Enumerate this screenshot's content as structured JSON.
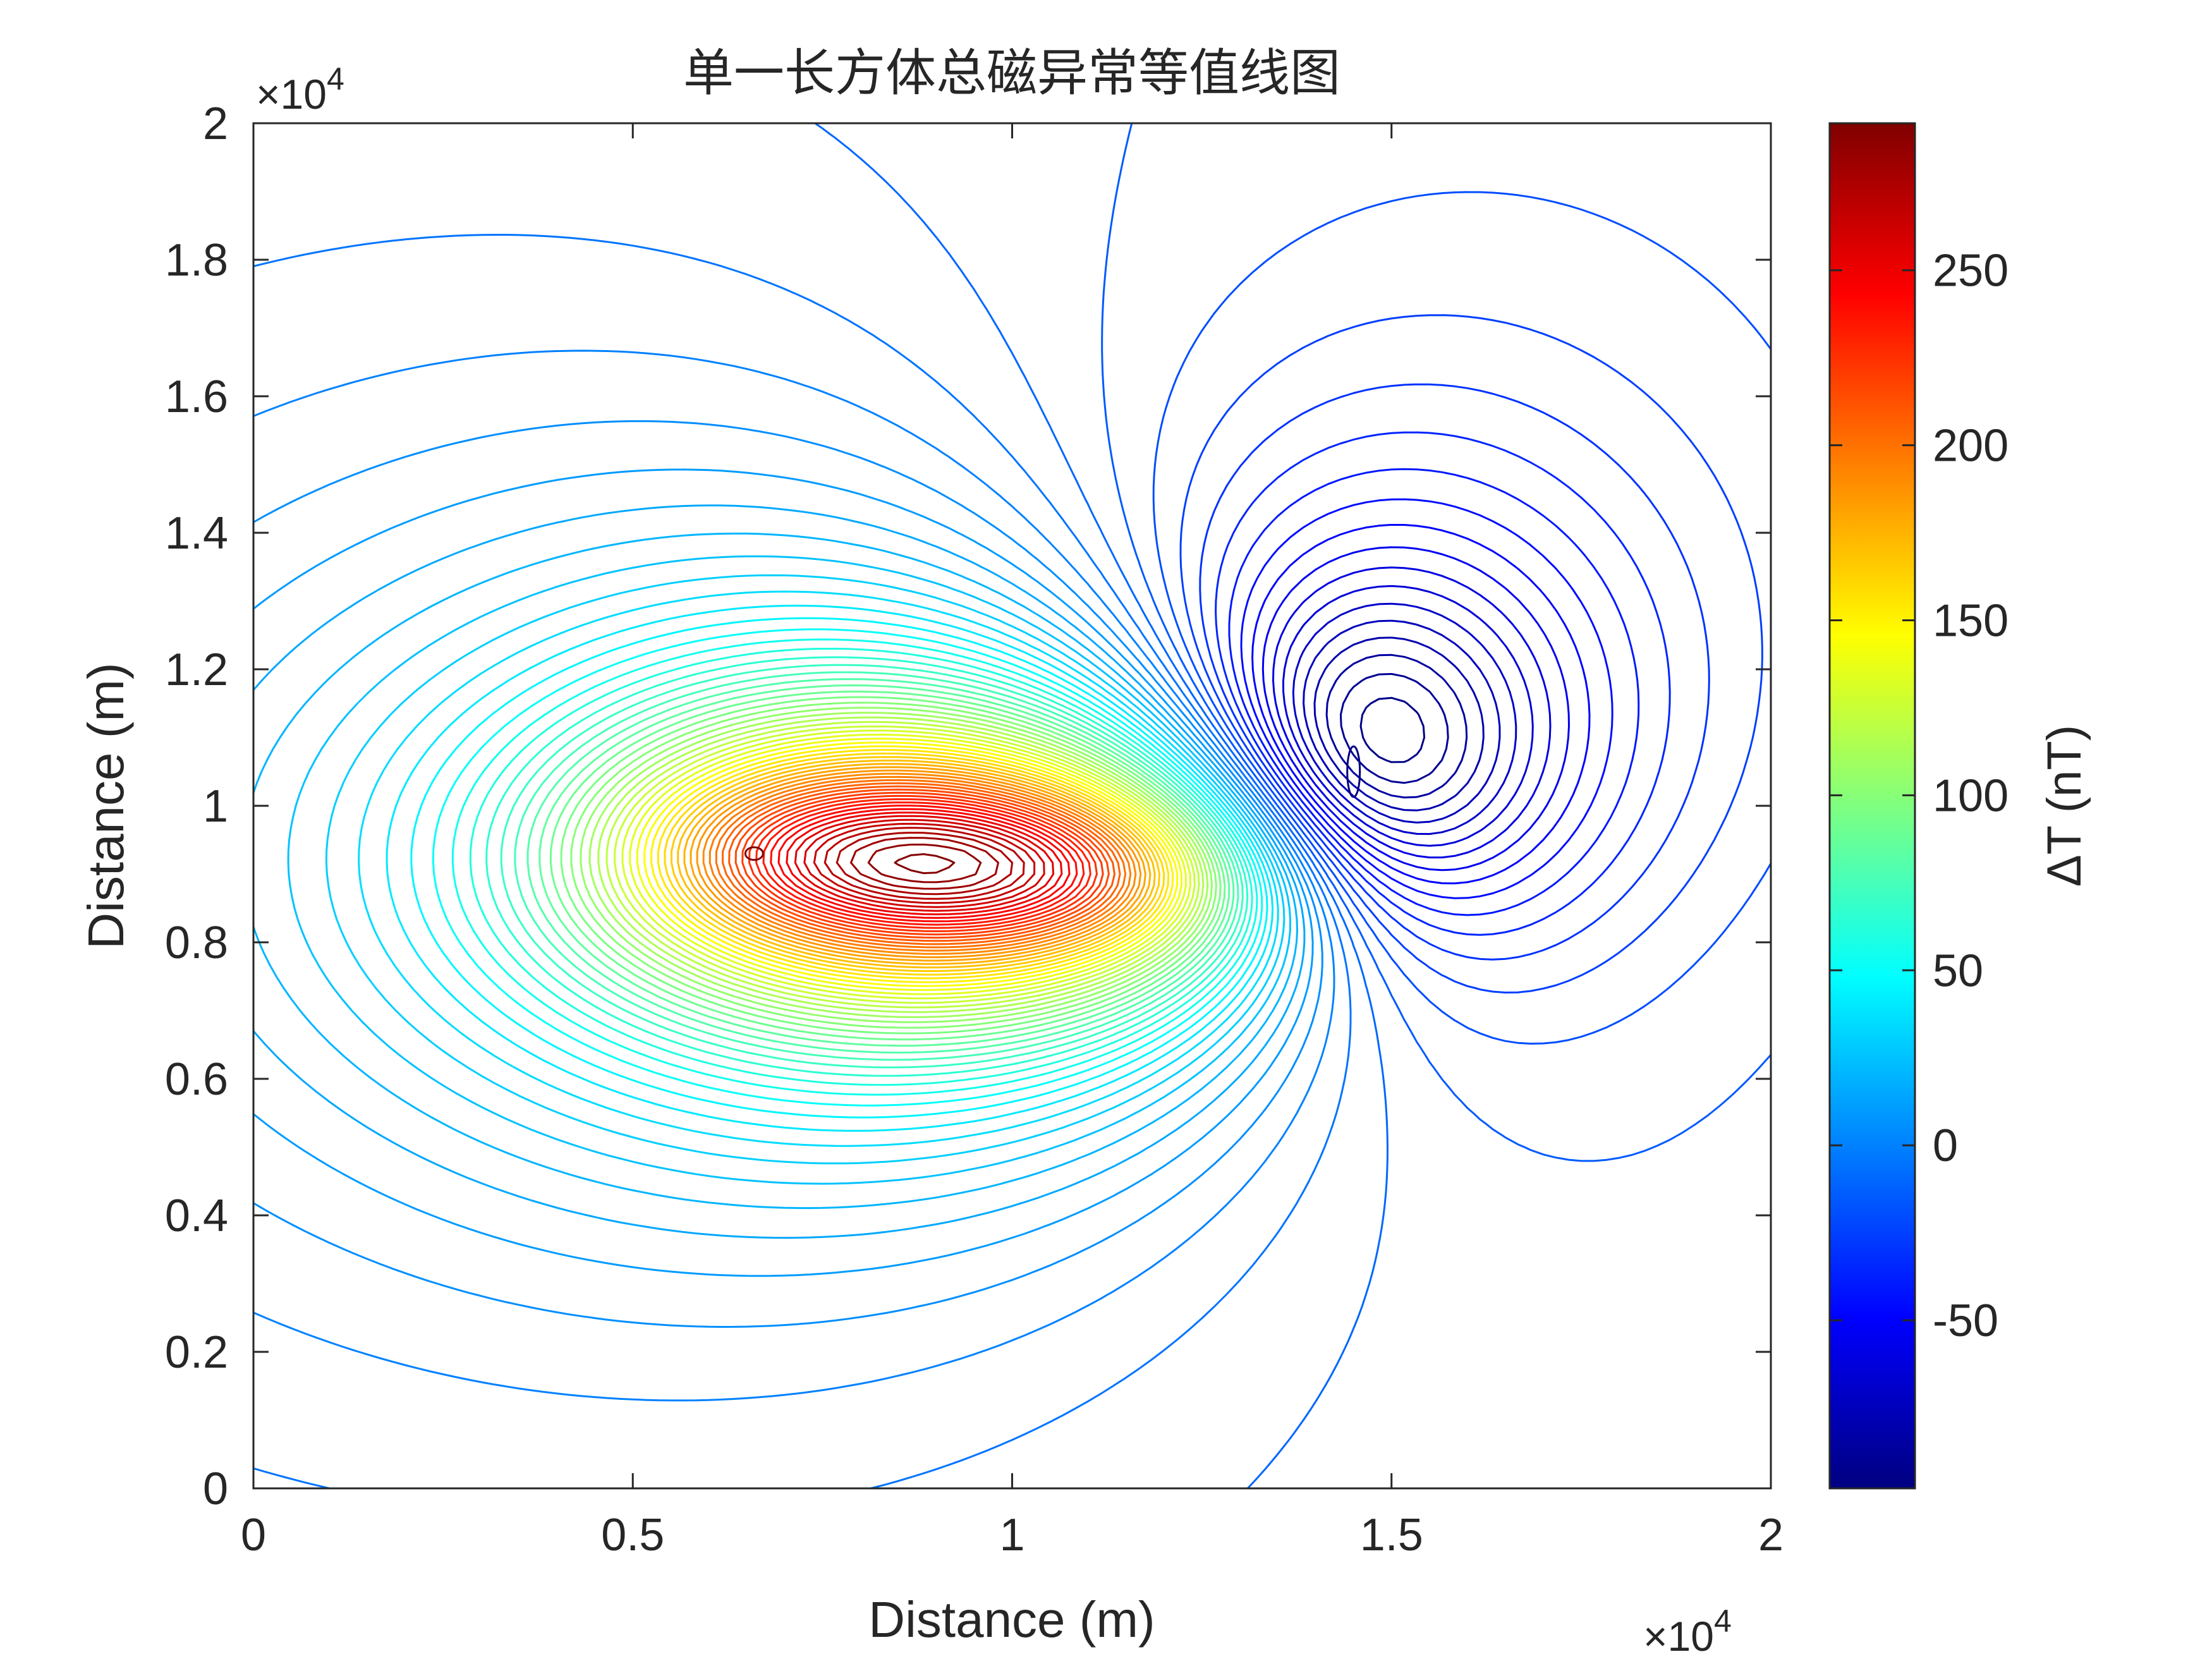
{
  "chart_data": {
    "type": "contour",
    "title": "单一长方体总磁异常等值线图",
    "xlabel": "Distance (m)",
    "ylabel": "Distance (m)",
    "colorbar_label": "ΔT (nT)",
    "colormap": "jet",
    "x_exponent_label": "×10",
    "x_exponent_power": "4",
    "y_exponent_label": "×10",
    "y_exponent_power": "4",
    "xlim": [
      0,
      20000
    ],
    "ylim": [
      0,
      20000
    ],
    "xticks": [
      0,
      5000,
      10000,
      15000,
      20000
    ],
    "xtick_labels": [
      "0",
      "0.5",
      "1",
      "1.5",
      "2"
    ],
    "yticks": [
      0,
      2000,
      4000,
      6000,
      8000,
      10000,
      12000,
      14000,
      16000,
      18000,
      20000
    ],
    "ytick_labels": [
      "0",
      "0.2",
      "0.4",
      "0.6",
      "0.8",
      "1",
      "1.2",
      "1.4",
      "1.6",
      "1.8",
      "2"
    ],
    "clim": [
      -98,
      292
    ],
    "cticks": [
      -50,
      0,
      50,
      100,
      150,
      200,
      250
    ],
    "ctick_labels": [
      "-50",
      "0",
      "50",
      "100",
      "150",
      "200",
      "250"
    ],
    "contour_step_nT": 5,
    "maximum": {
      "x": 6600,
      "y": 9300,
      "value": 292
    },
    "minimum": {
      "x": 14500,
      "y": 10500,
      "value": -98
    },
    "grid": false,
    "colorbar_position": "right"
  }
}
